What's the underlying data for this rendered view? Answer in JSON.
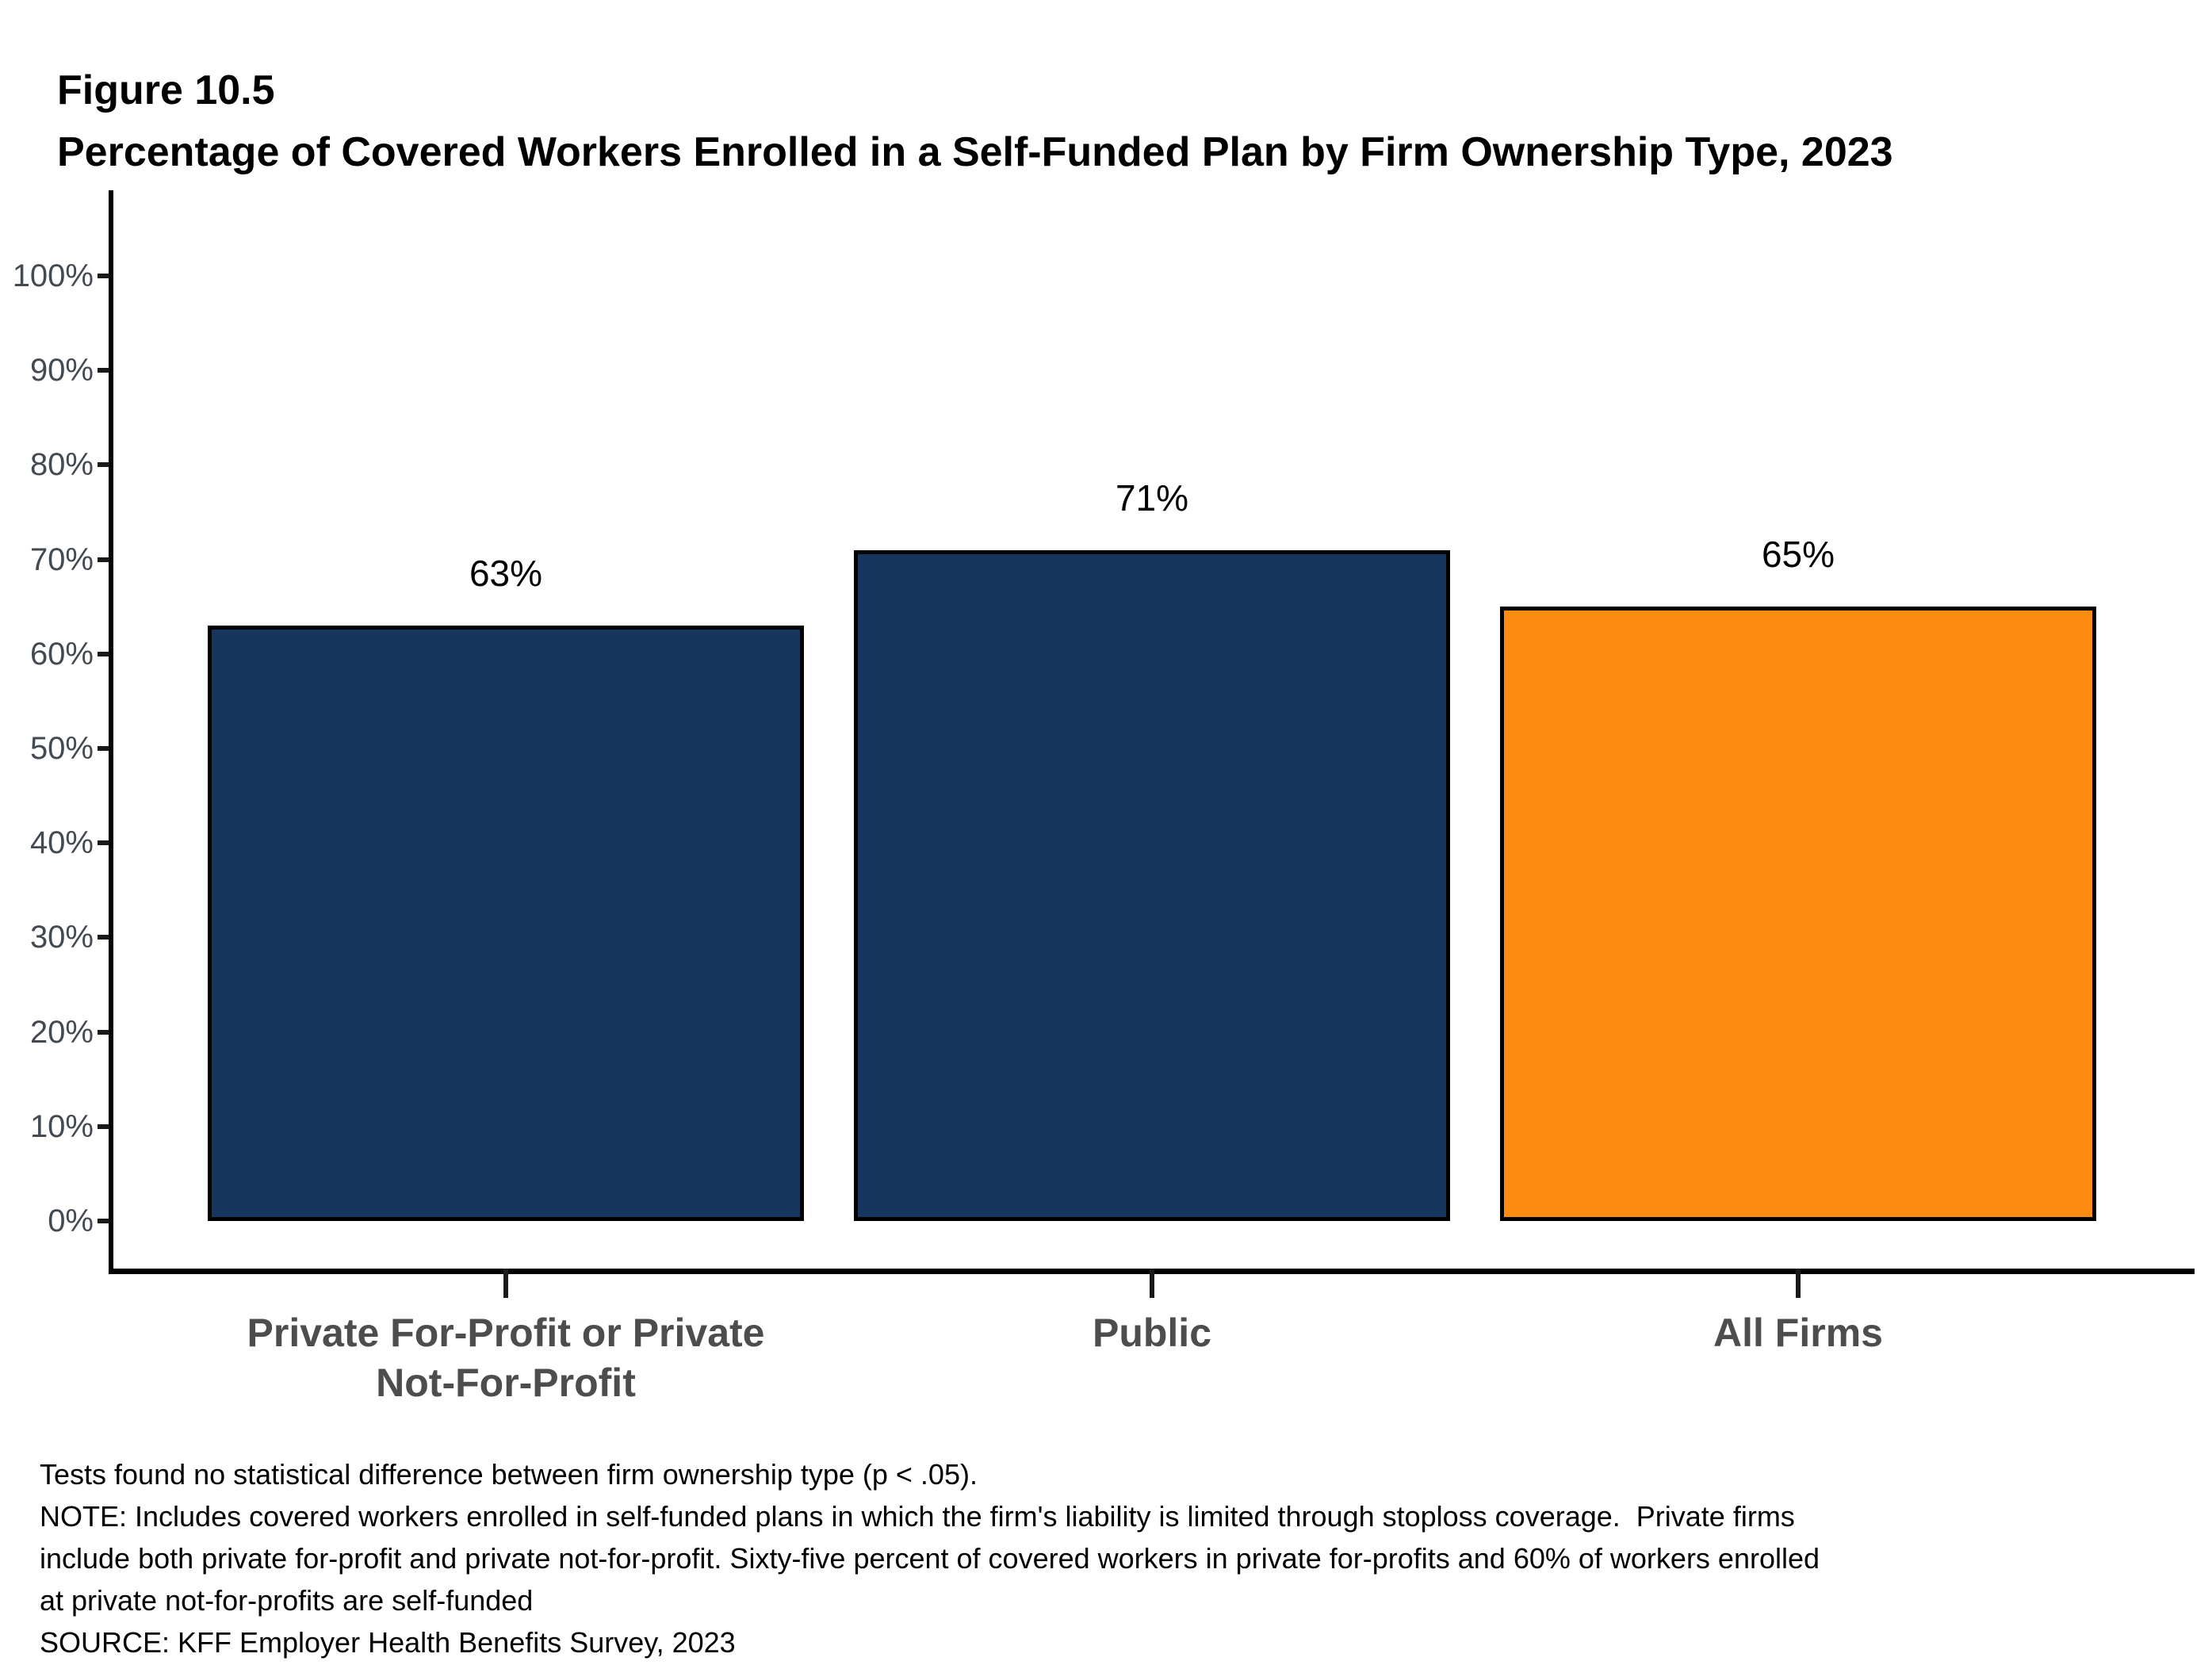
{
  "figure": {
    "label": "Figure 10.5",
    "title": "Percentage of Covered Workers Enrolled in a Self-Funded Plan by Firm Ownership Type, 2023"
  },
  "chart_data": {
    "type": "bar",
    "title": "Percentage of Covered Workers Enrolled in a Self-Funded Plan by Firm Ownership Type, 2023",
    "categories": [
      "Private For-Profit or Private\nNot-For-Profit",
      "Public",
      "All Firms"
    ],
    "values": [
      63,
      71,
      65
    ],
    "value_labels": [
      "63%",
      "71%",
      "65%"
    ],
    "bar_colors": [
      "#17365D",
      "#17365D",
      "#FC8C0F"
    ],
    "bar_border_color": "#000000",
    "xlabel": "",
    "ylabel": "",
    "ylim": [
      0,
      100
    ],
    "ytick_step": 10,
    "ytick_labels": [
      "0%",
      "10%",
      "20%",
      "30%",
      "40%",
      "50%",
      "60%",
      "70%",
      "80%",
      "90%",
      "100%"
    ],
    "grid": false,
    "legend": false,
    "legend_position": "none"
  },
  "footnotes": {
    "lines": [
      "Tests found no statistical difference between firm ownership type (p < .05).",
      "NOTE: Includes covered workers enrolled in self-funded plans in which the firm's liability is limited through stoploss coverage.  Private firms",
      "include both private for-profit and private not-for-profit. Sixty-five percent of covered workers in private for-profits and 60% of workers enrolled",
      "at private not-for-profits are self-funded",
      "SOURCE: KFF Employer Health Benefits Survey, 2023"
    ]
  },
  "colors": {
    "navy": "#17365D",
    "orange": "#FC8C0F",
    "axis": "#000000",
    "y_tick_label": "#434A52",
    "category_label": "#4D4D4D",
    "text": "#000000",
    "background": "#FFFFFF"
  }
}
